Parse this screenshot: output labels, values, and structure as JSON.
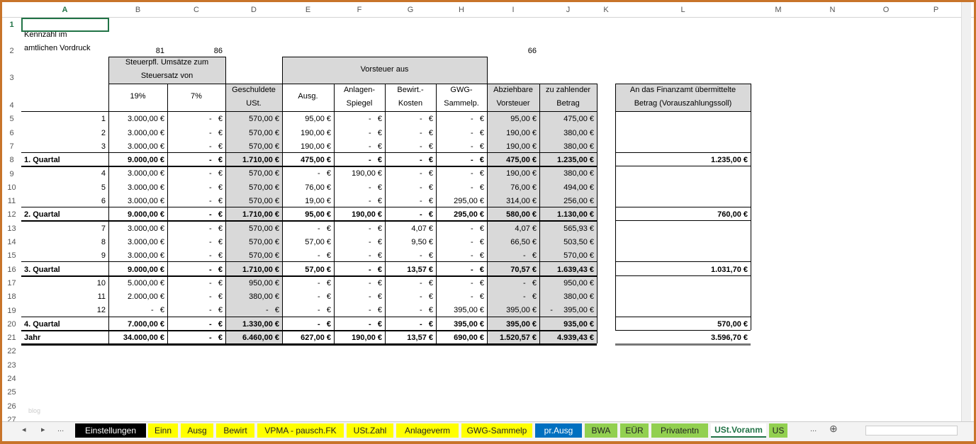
{
  "columns": [
    "A",
    "B",
    "C",
    "D",
    "E",
    "F",
    "G",
    "H",
    "I",
    "J",
    "K",
    "L",
    "M",
    "N",
    "O",
    "P"
  ],
  "selected_cell": "A1",
  "header": {
    "A2_line1": "Kennzahl im",
    "A2_line2": "amtlichen Vordruck",
    "B2": "81",
    "C2": "86",
    "I2": "66",
    "B3": "Steuerpfl. Umsätze zum Steuersatz von",
    "E3": "Vorsteuer aus",
    "B4": "19%",
    "C4": "7%",
    "D4": "Geschuldete USt.",
    "E4": "Ausg.",
    "F4": "Anlagen-Spiegel",
    "G4": "Bewirt.-Kosten",
    "H4": "GWG-Sammelp.",
    "I4": "Abziehbare Vorsteuer",
    "J4": "zu zahlender Betrag",
    "L4": "An das Finanzamt übermittelte Betrag (Vorauszahlungssoll)"
  },
  "rows": [
    {
      "n": 5,
      "A": "1",
      "B": "3.000,00 €",
      "C": "-   €",
      "D": "570,00 €",
      "E": "95,00 €",
      "F": "-   €",
      "G": "-   €",
      "H": "-   €",
      "I": "95,00 €",
      "J": "475,00 €",
      "L": ""
    },
    {
      "n": 6,
      "A": "2",
      "B": "3.000,00 €",
      "C": "-   €",
      "D": "570,00 €",
      "E": "190,00 €",
      "F": "-   €",
      "G": "-   €",
      "H": "-   €",
      "I": "190,00 €",
      "J": "380,00 €",
      "L": ""
    },
    {
      "n": 7,
      "A": "3",
      "B": "3.000,00 €",
      "C": "-   €",
      "D": "570,00 €",
      "E": "190,00 €",
      "F": "-   €",
      "G": "-   €",
      "H": "-   €",
      "I": "190,00 €",
      "J": "380,00 €",
      "L": ""
    },
    {
      "n": 8,
      "bold": true,
      "A": "1. Quartal",
      "B": "9.000,00 €",
      "C": "-   €",
      "D": "1.710,00 €",
      "E": "475,00 €",
      "F": "-   €",
      "G": "-   €",
      "H": "-   €",
      "I": "475,00 €",
      "J": "1.235,00 €",
      "L": "1.235,00 €"
    },
    {
      "n": 9,
      "A": "4",
      "B": "3.000,00 €",
      "C": "-   €",
      "D": "570,00 €",
      "E": "-   €",
      "F": "190,00 €",
      "G": "-   €",
      "H": "-   €",
      "I": "190,00 €",
      "J": "380,00 €",
      "L": ""
    },
    {
      "n": 10,
      "A": "5",
      "B": "3.000,00 €",
      "C": "-   €",
      "D": "570,00 €",
      "E": "76,00 €",
      "F": "-   €",
      "G": "-   €",
      "H": "-   €",
      "I": "76,00 €",
      "J": "494,00 €",
      "L": ""
    },
    {
      "n": 11,
      "A": "6",
      "B": "3.000,00 €",
      "C": "-   €",
      "D": "570,00 €",
      "E": "19,00 €",
      "F": "-   €",
      "G": "-   €",
      "H": "295,00 €",
      "I": "314,00 €",
      "J": "256,00 €",
      "L": ""
    },
    {
      "n": 12,
      "bold": true,
      "A": "2. Quartal",
      "B": "9.000,00 €",
      "C": "-   €",
      "D": "1.710,00 €",
      "E": "95,00 €",
      "F": "190,00 €",
      "G": "-   €",
      "H": "295,00 €",
      "I": "580,00 €",
      "J": "1.130,00 €",
      "L": "760,00 €"
    },
    {
      "n": 13,
      "A": "7",
      "B": "3.000,00 €",
      "C": "-   €",
      "D": "570,00 €",
      "E": "-   €",
      "F": "-   €",
      "G": "4,07 €",
      "H": "-   €",
      "I": "4,07 €",
      "J": "565,93 €",
      "L": ""
    },
    {
      "n": 14,
      "A": "8",
      "B": "3.000,00 €",
      "C": "-   €",
      "D": "570,00 €",
      "E": "57,00 €",
      "F": "-   €",
      "G": "9,50 €",
      "H": "-   €",
      "I": "66,50 €",
      "J": "503,50 €",
      "L": ""
    },
    {
      "n": 15,
      "A": "9",
      "B": "3.000,00 €",
      "C": "-   €",
      "D": "570,00 €",
      "E": "-   €",
      "F": "-   €",
      "G": "-   €",
      "H": "-   €",
      "I": "-   €",
      "J": "570,00 €",
      "L": ""
    },
    {
      "n": 16,
      "bold": true,
      "A": "3. Quartal",
      "B": "9.000,00 €",
      "C": "-   €",
      "D": "1.710,00 €",
      "E": "57,00 €",
      "F": "-   €",
      "G": "13,57 €",
      "H": "-   €",
      "I": "70,57 €",
      "J": "1.639,43 €",
      "L": "1.031,70 €"
    },
    {
      "n": 17,
      "A": "10",
      "B": "5.000,00 €",
      "C": "-   €",
      "D": "950,00 €",
      "E": "-   €",
      "F": "-   €",
      "G": "-   €",
      "H": "-   €",
      "I": "-   €",
      "J": "950,00 €",
      "L": ""
    },
    {
      "n": 18,
      "A": "11",
      "B": "2.000,00 €",
      "C": "-   €",
      "D": "380,00 €",
      "E": "-   €",
      "F": "-   €",
      "G": "-   €",
      "H": "-   €",
      "I": "-   €",
      "J": "380,00 €",
      "L": ""
    },
    {
      "n": 19,
      "A": "12",
      "B": "-   €",
      "C": "-   €",
      "D": "-   €",
      "E": "-   €",
      "F": "-   €",
      "G": "-   €",
      "H": "395,00 €",
      "I": "395,00 €",
      "J": "-     395,00 €",
      "L": ""
    },
    {
      "n": 20,
      "bold": true,
      "A": "4. Quartal",
      "B": "7.000,00 €",
      "C": "-   €",
      "D": "1.330,00 €",
      "E": "-   €",
      "F": "-   €",
      "G": "-   €",
      "H": "395,00 €",
      "I": "395,00 €",
      "J": "935,00 €",
      "L": "570,00 €"
    },
    {
      "n": 21,
      "bold": true,
      "A": "Jahr",
      "B": "34.000,00 €",
      "C": "-   €",
      "D": "6.460,00 €",
      "E": "627,00 €",
      "F": "190,00 €",
      "G": "13,57 €",
      "H": "690,00 €",
      "I": "1.520,57 €",
      "J": "4.939,43 €",
      "L": "3.596,70 €"
    }
  ],
  "empty_rows": [
    22,
    23,
    24,
    25,
    26,
    27
  ],
  "watermark": "blog",
  "tabs": [
    {
      "label": "Einstellungen",
      "bg": "#000000",
      "fg": "#ffffff"
    },
    {
      "label": "Einn",
      "bg": "#ffff00",
      "fg": "#222222"
    },
    {
      "label": "Ausg",
      "bg": "#ffff00",
      "fg": "#222222"
    },
    {
      "label": "Bewirt",
      "bg": "#ffff00",
      "fg": "#222222"
    },
    {
      "label": "VPMA - pausch.FK",
      "bg": "#ffff00",
      "fg": "#222222"
    },
    {
      "label": "USt.Zahl",
      "bg": "#ffff00",
      "fg": "#222222"
    },
    {
      "label": "Anlageverm",
      "bg": "#ffff00",
      "fg": "#222222"
    },
    {
      "label": "GWG-Sammelp",
      "bg": "#ffff00",
      "fg": "#222222"
    },
    {
      "label": "pr.Ausg",
      "bg": "#0070c0",
      "fg": "#ffffff"
    },
    {
      "label": "BWA",
      "bg": "#92d050",
      "fg": "#222222"
    },
    {
      "label": "EÜR",
      "bg": "#92d050",
      "fg": "#222222"
    },
    {
      "label": "Privatentn",
      "bg": "#92d050",
      "fg": "#222222"
    },
    {
      "label": "USt.Voranm",
      "bg": "#ffffff",
      "fg": "#217346",
      "active": true
    },
    {
      "label": "US",
      "bg": "#92d050",
      "fg": "#222222"
    }
  ],
  "tab_nav": {
    "prev": "◂",
    "next": "▸",
    "more_left": "...",
    "more_right": "...",
    "add": "⊕"
  }
}
